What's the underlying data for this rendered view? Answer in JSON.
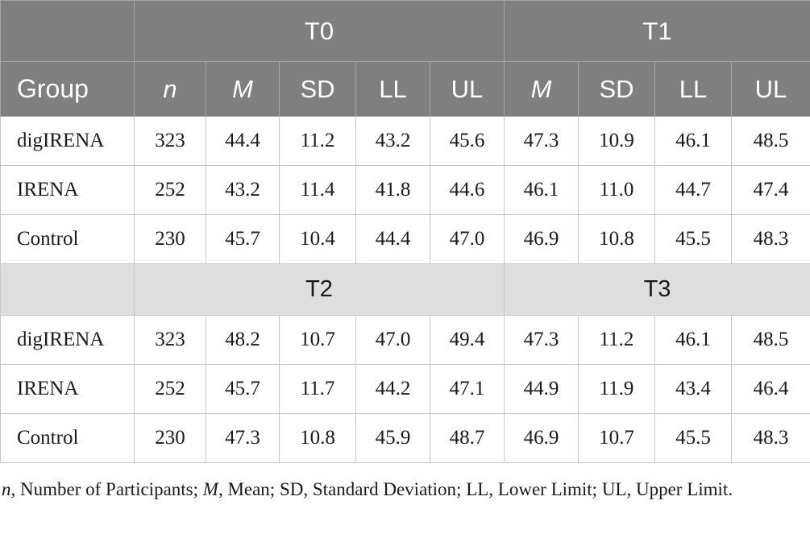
{
  "table": {
    "header_top": {
      "blank": "",
      "t0": "T0",
      "t1": "T1"
    },
    "header_cols": {
      "group": "Group",
      "n": "n",
      "m": "M",
      "sd": "SD",
      "ll": "LL",
      "ul": "UL",
      "m2": "M",
      "sd2": "SD",
      "ll2": "LL",
      "ul2": "UL"
    },
    "block1": [
      {
        "group": "digIRENA",
        "n": "323",
        "t0_m": "44.4",
        "t0_sd": "11.2",
        "t0_ll": "43.2",
        "t0_ul": "45.6",
        "t1_m": "47.3",
        "t1_sd": "10.9",
        "t1_ll": "46.1",
        "t1_ul": "48.5"
      },
      {
        "group": "IRENA",
        "n": "252",
        "t0_m": "43.2",
        "t0_sd": "11.4",
        "t0_ll": "41.8",
        "t0_ul": "44.6",
        "t1_m": "46.1",
        "t1_sd": "11.0",
        "t1_ll": "44.7",
        "t1_ul": "47.4"
      },
      {
        "group": "Control",
        "n": "230",
        "t0_m": "45.7",
        "t0_sd": "10.4",
        "t0_ll": "44.4",
        "t0_ul": "47.0",
        "t1_m": "46.9",
        "t1_sd": "10.8",
        "t1_ll": "45.5",
        "t1_ul": "48.3"
      }
    ],
    "header_mid": {
      "blank": "",
      "t2": "T2",
      "t3": "T3"
    },
    "block2": [
      {
        "group": "digIRENA",
        "n": "323",
        "t2_m": "48.2",
        "t2_sd": "10.7",
        "t2_ll": "47.0",
        "t2_ul": "49.4",
        "t3_m": "47.3",
        "t3_sd": "11.2",
        "t3_ll": "46.1",
        "t3_ul": "48.5"
      },
      {
        "group": "IRENA",
        "n": "252",
        "t2_m": "45.7",
        "t2_sd": "11.7",
        "t2_ll": "44.2",
        "t2_ul": "47.1",
        "t3_m": "44.9",
        "t3_sd": "11.9",
        "t3_ll": "43.4",
        "t3_ul": "46.4"
      },
      {
        "group": "Control",
        "n": "230",
        "t2_m": "47.3",
        "t2_sd": "10.8",
        "t2_ll": "45.9",
        "t2_ul": "48.7",
        "t3_m": "46.9",
        "t3_sd": "10.7",
        "t3_ll": "45.5",
        "t3_ul": "48.3"
      }
    ]
  },
  "footnote": {
    "n_key": "n",
    "n_text": ", Number of Participants; ",
    "m_key": "M",
    "m_text": ", Mean; SD, Standard Deviation; LL, Lower Limit; UL, Upper Limit."
  },
  "colors": {
    "header_dark": "#7f7f7f",
    "header_light": "#dedede",
    "border": "#c8c8c8"
  }
}
